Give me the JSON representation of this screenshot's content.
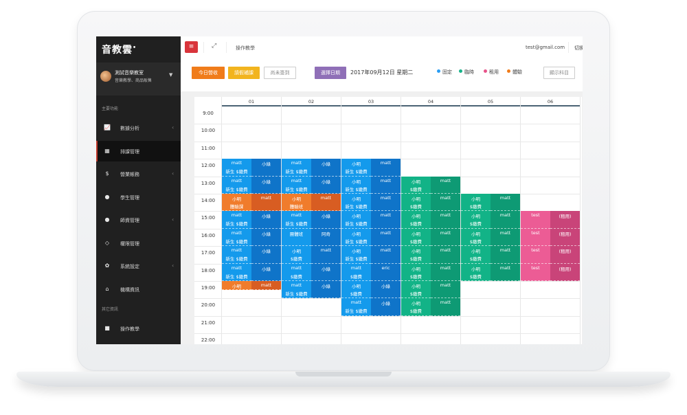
{
  "app": {
    "logo": "音教雲",
    "logo_mark": "•"
  },
  "profile": {
    "name": "測試音樂教室",
    "subtitle": "音樂教學、商品販售"
  },
  "sidebar": {
    "section_main": "主要功能",
    "section_other": "其它資訊",
    "items": [
      {
        "label": "數據分析",
        "icon": "chart-line-icon",
        "glyph": "📈",
        "chev": true
      },
      {
        "label": "排課管理",
        "icon": "calendar-icon",
        "glyph": "▦",
        "chev": false,
        "active": true
      },
      {
        "label": "營業帳務",
        "icon": "dollar-icon",
        "glyph": "$",
        "chev": true
      },
      {
        "label": "學生管理",
        "icon": "user-icon",
        "glyph": "●",
        "chev": false
      },
      {
        "label": "師資管理",
        "icon": "user-icon",
        "glyph": "●",
        "chev": true
      },
      {
        "label": "權限管理",
        "icon": "diamond-icon",
        "glyph": "◇",
        "chev": false
      },
      {
        "label": "系統設定",
        "icon": "gear-icon",
        "glyph": "✿",
        "chev": true
      },
      {
        "label": "機構資訊",
        "icon": "home-icon",
        "glyph": "⌂",
        "chev": false
      }
    ],
    "other_items": [
      {
        "label": "操作教學",
        "icon": "video-icon",
        "glyph": "■"
      }
    ]
  },
  "topbar": {
    "link": "操作教學",
    "email": "test@gmail.com",
    "switch": "切換"
  },
  "toolbar": {
    "today_revenue": "今日營收",
    "leave_makeup": "請假補課",
    "not_signed": "尚未簽到",
    "select_date": "選擇日期",
    "date": "2017年09月12日 星期二",
    "show_subject": "顯示科目"
  },
  "legend": [
    {
      "label": "固定",
      "color": "#2a9df4"
    },
    {
      "label": "臨時",
      "color": "#17b38a"
    },
    {
      "label": "租用",
      "color": "#e8538a"
    },
    {
      "label": "體驗",
      "color": "#f07c1a"
    }
  ],
  "colors": {
    "blue": "#149aec",
    "darkblue": "#0f74c9",
    "green": "#12b387",
    "darkgreen": "#0e9a74",
    "pink": "#ec5c95",
    "darkpink": "#c94479",
    "orange": "#f07c2c",
    "darkorange": "#d85d22"
  },
  "calendar": {
    "times": [
      "9:00",
      "10:00",
      "11:00",
      "12:00",
      "13:00",
      "14:00",
      "15:00",
      "16:00",
      "17:00",
      "18:00",
      "19:00",
      "20:00",
      "21:00",
      "22:00"
    ],
    "days": [
      "01",
      "02",
      "03",
      "04",
      "05",
      "06"
    ],
    "events": [
      {
        "day": 0,
        "sub": 0,
        "row": 3,
        "color": "blue",
        "t1": "matt",
        "t2": "新生 $繳費"
      },
      {
        "day": 0,
        "sub": 1,
        "row": 3,
        "color": "darkblue",
        "t1": "小綠",
        "t2": ""
      },
      {
        "day": 0,
        "sub": 0,
        "row": 4,
        "color": "blue",
        "t1": "matt",
        "t2": "新生 $繳費"
      },
      {
        "day": 0,
        "sub": 1,
        "row": 4,
        "color": "darkblue",
        "t1": "小綠",
        "t2": ""
      },
      {
        "day": 0,
        "sub": 0,
        "row": 5,
        "color": "orange",
        "t1": "小明",
        "t2": "體驗課"
      },
      {
        "day": 0,
        "sub": 1,
        "row": 5,
        "color": "darkorange",
        "t1": "matt",
        "t2": ""
      },
      {
        "day": 0,
        "sub": 0,
        "row": 6,
        "color": "blue",
        "t1": "matt",
        "t2": "新生 $繳費"
      },
      {
        "day": 0,
        "sub": 1,
        "row": 6,
        "color": "darkblue",
        "t1": "小綠",
        "t2": ""
      },
      {
        "day": 0,
        "sub": 0,
        "row": 7,
        "color": "blue",
        "t1": "matt",
        "t2": "新生 $繳費"
      },
      {
        "day": 0,
        "sub": 1,
        "row": 7,
        "color": "darkblue",
        "t1": "小綠",
        "t2": ""
      },
      {
        "day": 0,
        "sub": 0,
        "row": 8,
        "color": "blue",
        "t1": "matt",
        "t2": "新生 $繳費"
      },
      {
        "day": 0,
        "sub": 1,
        "row": 8,
        "color": "darkblue",
        "t1": "小綠",
        "t2": ""
      },
      {
        "day": 0,
        "sub": 0,
        "row": 9,
        "color": "blue",
        "t1": "matt",
        "t2": "新生 $繳費"
      },
      {
        "day": 0,
        "sub": 1,
        "row": 9,
        "color": "darkblue",
        "t1": "小綠",
        "t2": ""
      },
      {
        "day": 0,
        "sub": 0,
        "row": 10,
        "color": "orange",
        "t1": "小明",
        "t2": "",
        "half": true
      },
      {
        "day": 0,
        "sub": 1,
        "row": 10,
        "color": "darkorange",
        "t1": "matt",
        "t2": "",
        "half": true
      },
      {
        "day": 1,
        "sub": 0,
        "row": 3,
        "color": "blue",
        "t1": "matt",
        "t2": "新生 $繳費"
      },
      {
        "day": 1,
        "sub": 1,
        "row": 3,
        "color": "darkblue",
        "t1": "小綠",
        "t2": ""
      },
      {
        "day": 1,
        "sub": 0,
        "row": 4,
        "color": "blue",
        "t1": "matt",
        "t2": "新生 $繳費"
      },
      {
        "day": 1,
        "sub": 1,
        "row": 4,
        "color": "darkblue",
        "t1": "小綠",
        "t2": ""
      },
      {
        "day": 1,
        "sub": 0,
        "row": 5,
        "color": "orange",
        "t1": "小明",
        "t2": "體驗班"
      },
      {
        "day": 1,
        "sub": 1,
        "row": 5,
        "color": "darkorange",
        "t1": "matt",
        "t2": ""
      },
      {
        "day": 1,
        "sub": 0,
        "row": 6,
        "color": "blue",
        "t1": "matt",
        "t2": "新生 $繳費"
      },
      {
        "day": 1,
        "sub": 1,
        "row": 6,
        "color": "darkblue",
        "t1": "小綠",
        "t2": ""
      },
      {
        "day": 1,
        "sub": 0,
        "row": 7,
        "color": "blue",
        "t1": "團體班",
        "t2": ""
      },
      {
        "day": 1,
        "sub": 1,
        "row": 7,
        "color": "darkblue",
        "t1": "阿奇",
        "t2": ""
      },
      {
        "day": 1,
        "sub": 0,
        "row": 8,
        "color": "blue",
        "t1": "小明",
        "t2": "$繳費"
      },
      {
        "day": 1,
        "sub": 1,
        "row": 8,
        "color": "darkblue",
        "t1": "matt",
        "t2": ""
      },
      {
        "day": 1,
        "sub": 0,
        "row": 9,
        "color": "blue",
        "t1": "matt",
        "t2": "$繳費"
      },
      {
        "day": 1,
        "sub": 1,
        "row": 9,
        "color": "darkblue",
        "t1": "小綠",
        "t2": ""
      },
      {
        "day": 1,
        "sub": 0,
        "row": 10,
        "color": "blue",
        "t1": "matt",
        "t2": "新生 $繳費"
      },
      {
        "day": 1,
        "sub": 1,
        "row": 10,
        "color": "darkblue",
        "t1": "小綠",
        "t2": ""
      },
      {
        "day": 2,
        "sub": 0,
        "row": 3,
        "color": "blue",
        "t1": "小明",
        "t2": "新生 $繳費"
      },
      {
        "day": 2,
        "sub": 1,
        "row": 3,
        "color": "darkblue",
        "t1": "matt",
        "t2": ""
      },
      {
        "day": 2,
        "sub": 0,
        "row": 4,
        "color": "blue",
        "t1": "小明",
        "t2": "新生 $繳費"
      },
      {
        "day": 2,
        "sub": 1,
        "row": 4,
        "color": "darkblue",
        "t1": "matt",
        "t2": ""
      },
      {
        "day": 2,
        "sub": 0,
        "row": 5,
        "color": "blue",
        "t1": "小明",
        "t2": "新生 $繳費"
      },
      {
        "day": 2,
        "sub": 1,
        "row": 5,
        "color": "darkblue",
        "t1": "matt",
        "t2": ""
      },
      {
        "day": 2,
        "sub": 0,
        "row": 6,
        "color": "blue",
        "t1": "小明",
        "t2": "新生 $繳費"
      },
      {
        "day": 2,
        "sub": 1,
        "row": 6,
        "color": "darkblue",
        "t1": "matt",
        "t2": ""
      },
      {
        "day": 2,
        "sub": 0,
        "row": 7,
        "color": "blue",
        "t1": "小明",
        "t2": "新生 $繳費"
      },
      {
        "day": 2,
        "sub": 1,
        "row": 7,
        "color": "darkblue",
        "t1": "matt",
        "t2": ""
      },
      {
        "day": 2,
        "sub": 0,
        "row": 8,
        "color": "blue",
        "t1": "小明",
        "t2": "新生 $繳費"
      },
      {
        "day": 2,
        "sub": 1,
        "row": 8,
        "color": "darkblue",
        "t1": "matt",
        "t2": ""
      },
      {
        "day": 2,
        "sub": 0,
        "row": 9,
        "color": "blue",
        "t1": "matt",
        "t2": "$繳費"
      },
      {
        "day": 2,
        "sub": 1,
        "row": 9,
        "color": "darkblue",
        "t1": "eric",
        "t2": ""
      },
      {
        "day": 2,
        "sub": 0,
        "row": 10,
        "color": "blue",
        "t1": "小明",
        "t2": "$繳費"
      },
      {
        "day": 2,
        "sub": 1,
        "row": 10,
        "color": "darkblue",
        "t1": "小綠",
        "t2": ""
      },
      {
        "day": 2,
        "sub": 0,
        "row": 11,
        "color": "blue",
        "t1": "matt",
        "t2": "新生 $繳費"
      },
      {
        "day": 2,
        "sub": 1,
        "row": 11,
        "color": "darkblue",
        "t1": "小綠",
        "t2": ""
      },
      {
        "day": 3,
        "sub": 0,
        "row": 4,
        "color": "green",
        "t1": "小明",
        "t2": "$繳費"
      },
      {
        "day": 3,
        "sub": 1,
        "row": 4,
        "color": "darkgreen",
        "t1": "matt",
        "t2": ""
      },
      {
        "day": 3,
        "sub": 0,
        "row": 5,
        "color": "green",
        "t1": "小明",
        "t2": "$繳費"
      },
      {
        "day": 3,
        "sub": 1,
        "row": 5,
        "color": "darkgreen",
        "t1": "matt",
        "t2": ""
      },
      {
        "day": 3,
        "sub": 0,
        "row": 6,
        "color": "green",
        "t1": "小明",
        "t2": "$繳費"
      },
      {
        "day": 3,
        "sub": 1,
        "row": 6,
        "color": "darkgreen",
        "t1": "matt",
        "t2": ""
      },
      {
        "day": 3,
        "sub": 0,
        "row": 7,
        "color": "green",
        "t1": "小明",
        "t2": "$繳費"
      },
      {
        "day": 3,
        "sub": 1,
        "row": 7,
        "color": "darkgreen",
        "t1": "matt",
        "t2": ""
      },
      {
        "day": 3,
        "sub": 0,
        "row": 8,
        "color": "green",
        "t1": "小明",
        "t2": "$繳費"
      },
      {
        "day": 3,
        "sub": 1,
        "row": 8,
        "color": "darkgreen",
        "t1": "matt",
        "t2": ""
      },
      {
        "day": 3,
        "sub": 0,
        "row": 9,
        "color": "green",
        "t1": "小明",
        "t2": "$繳費"
      },
      {
        "day": 3,
        "sub": 1,
        "row": 9,
        "color": "darkgreen",
        "t1": "matt",
        "t2": ""
      },
      {
        "day": 3,
        "sub": 0,
        "row": 10,
        "color": "green",
        "t1": "小明",
        "t2": "$繳費"
      },
      {
        "day": 3,
        "sub": 1,
        "row": 10,
        "color": "darkgreen",
        "t1": "matt",
        "t2": ""
      },
      {
        "day": 3,
        "sub": 0,
        "row": 11,
        "color": "green",
        "t1": "小明",
        "t2": "$繳費"
      },
      {
        "day": 3,
        "sub": 1,
        "row": 11,
        "color": "darkgreen",
        "t1": "matt",
        "t2": ""
      },
      {
        "day": 4,
        "sub": 0,
        "row": 5,
        "color": "green",
        "t1": "小明",
        "t2": "$繳費"
      },
      {
        "day": 4,
        "sub": 1,
        "row": 5,
        "color": "darkgreen",
        "t1": "matt",
        "t2": ""
      },
      {
        "day": 4,
        "sub": 0,
        "row": 6,
        "color": "green",
        "t1": "小明",
        "t2": "$繳費"
      },
      {
        "day": 4,
        "sub": 1,
        "row": 6,
        "color": "darkgreen",
        "t1": "matt",
        "t2": ""
      },
      {
        "day": 4,
        "sub": 0,
        "row": 7,
        "color": "green",
        "t1": "小明",
        "t2": "$繳費"
      },
      {
        "day": 4,
        "sub": 1,
        "row": 7,
        "color": "darkgreen",
        "t1": "matt",
        "t2": ""
      },
      {
        "day": 4,
        "sub": 0,
        "row": 8,
        "color": "green",
        "t1": "小明",
        "t2": "$繳費"
      },
      {
        "day": 4,
        "sub": 1,
        "row": 8,
        "color": "darkgreen",
        "t1": "matt",
        "t2": ""
      },
      {
        "day": 4,
        "sub": 0,
        "row": 9,
        "color": "green",
        "t1": "小明",
        "t2": "$繳費"
      },
      {
        "day": 4,
        "sub": 1,
        "row": 9,
        "color": "darkgreen",
        "t1": "matt",
        "t2": ""
      },
      {
        "day": 5,
        "sub": 0,
        "row": 6,
        "color": "pink",
        "t1": "test",
        "t2": ""
      },
      {
        "day": 5,
        "sub": 1,
        "row": 6,
        "color": "darkpink",
        "t1": "(租用)",
        "t2": ""
      },
      {
        "day": 5,
        "sub": 0,
        "row": 7,
        "color": "pink",
        "t1": "test",
        "t2": ""
      },
      {
        "day": 5,
        "sub": 1,
        "row": 7,
        "color": "darkpink",
        "t1": "(租用)",
        "t2": ""
      },
      {
        "day": 5,
        "sub": 0,
        "row": 8,
        "color": "pink",
        "t1": "test",
        "t2": ""
      },
      {
        "day": 5,
        "sub": 1,
        "row": 8,
        "color": "darkpink",
        "t1": "(租用)",
        "t2": ""
      },
      {
        "day": 5,
        "sub": 0,
        "row": 9,
        "color": "pink",
        "t1": "test",
        "t2": ""
      },
      {
        "day": 5,
        "sub": 1,
        "row": 9,
        "color": "darkpink",
        "t1": "(租用)",
        "t2": ""
      }
    ]
  }
}
